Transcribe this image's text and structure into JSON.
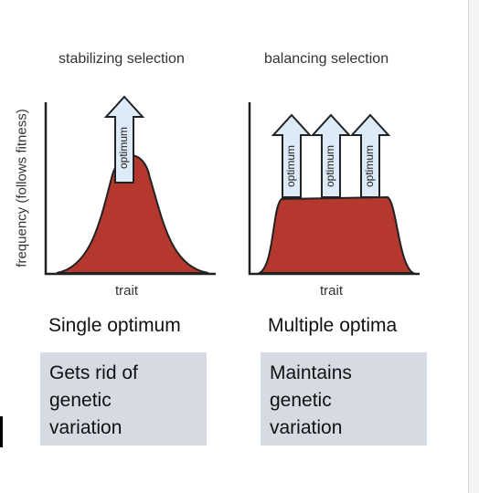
{
  "panels": {
    "left": {
      "title": "stabilizing selection",
      "x_label": "trait",
      "heading": "Single optimum",
      "box_lines": [
        "Gets rid of",
        "genetic",
        "variation"
      ],
      "arrow_labels": [
        "optimum"
      ]
    },
    "right": {
      "title": "balancing selection",
      "x_label": "trait",
      "heading": "Multiple optima",
      "box_lines": [
        "Maintains",
        "genetic",
        "variation"
      ],
      "arrow_labels": [
        "optimum",
        "optimum",
        "optimum"
      ]
    }
  },
  "y_axis_label": "frequency (follows fitness)",
  "colors": {
    "curve_fill": "#b5382f",
    "arrow_fill": "#dcebf7",
    "box_bg": "#d6dbe3"
  }
}
